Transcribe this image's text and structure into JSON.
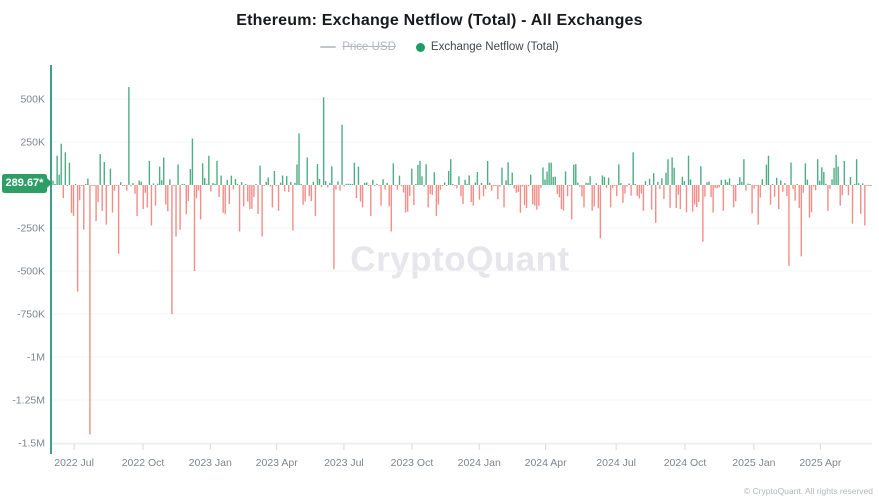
{
  "page": {
    "watermark": "CryptoQuant",
    "copyright": "© CryptoQuant. All rights reserved"
  },
  "chart_data": {
    "type": "bar",
    "title": "Ethereum: Exchange Netflow (Total) - All Exchanges",
    "legend": [
      {
        "label": "Price USD",
        "state": "disabled",
        "marker": "line",
        "color": "#c3c8cd"
      },
      {
        "label": "Exchange Netflow (Total)",
        "state": "active",
        "marker": "dot",
        "color": "#1d9e68"
      }
    ],
    "zero_value_badge": "289.67*",
    "unit": "values in thousands (K) of ETH",
    "ylim_k": [
      -1600,
      660
    ],
    "grid": "horizontal-faint",
    "y_ticks": [
      {
        "label": "500K",
        "value_k": 500
      },
      {
        "label": "250K",
        "value_k": 250
      },
      {
        "label": "-250K",
        "value_k": -250
      },
      {
        "label": "-500K",
        "value_k": -500
      },
      {
        "label": "-750K",
        "value_k": -750
      },
      {
        "label": "-1M",
        "value_k": -1000
      },
      {
        "label": "-1.25M",
        "value_k": -1250
      },
      {
        "label": "-1.5M",
        "value_k": -1500
      }
    ],
    "x_ticks": [
      {
        "label": "2022 Jul",
        "t": 0.027
      },
      {
        "label": "2022 Oct",
        "t": 0.111
      },
      {
        "label": "2023 Jan",
        "t": 0.193
      },
      {
        "label": "2023 Apr",
        "t": 0.274
      },
      {
        "label": "2023 Jul",
        "t": 0.356
      },
      {
        "label": "2023 Oct",
        "t": 0.439
      },
      {
        "label": "2024 Jan",
        "t": 0.521
      },
      {
        "label": "2024 Apr",
        "t": 0.602
      },
      {
        "label": "2024 Jul",
        "t": 0.688
      },
      {
        "label": "2024 Oct",
        "t": 0.772
      },
      {
        "label": "2025 Jan",
        "t": 0.856
      },
      {
        "label": "2025 Apr",
        "t": 0.937
      }
    ],
    "series_name": "Exchange Netflow (Total)",
    "colors": {
      "positive": "#3aa578",
      "negative": "#f0827a",
      "axis": "#3f9e8d",
      "badge": "#2e9e66"
    },
    "bars": {
      "count": 400,
      "spikes_k": [
        [
          2,
          170
        ],
        [
          4,
          240
        ],
        [
          6,
          190
        ],
        [
          8,
          130
        ],
        [
          10,
          -180
        ],
        [
          12,
          -620
        ],
        [
          15,
          -260
        ],
        [
          18,
          -1450
        ],
        [
          21,
          -210
        ],
        [
          23,
          180
        ],
        [
          26,
          -230
        ],
        [
          29,
          -160
        ],
        [
          32,
          -400
        ],
        [
          37,
          570
        ],
        [
          41,
          -180
        ],
        [
          44,
          -140
        ],
        [
          47,
          140
        ],
        [
          50,
          -120
        ],
        [
          54,
          160
        ],
        [
          58,
          -750
        ],
        [
          60,
          -300
        ],
        [
          62,
          -260
        ],
        [
          65,
          -170
        ],
        [
          68,
          270
        ],
        [
          69,
          -500
        ],
        [
          72,
          -200
        ],
        [
          76,
          170
        ],
        [
          80,
          140
        ],
        [
          84,
          -170
        ],
        [
          91,
          -270
        ],
        [
          96,
          -140
        ],
        [
          102,
          -300
        ],
        [
          107,
          -130
        ],
        [
          110,
          -150
        ],
        [
          117,
          -265
        ],
        [
          120,
          300
        ],
        [
          124,
          160
        ],
        [
          128,
          -180
        ],
        [
          132,
          510
        ],
        [
          137,
          -490
        ],
        [
          141,
          350
        ],
        [
          147,
          130
        ],
        [
          151,
          -130
        ],
        [
          155,
          -180
        ],
        [
          160,
          -120
        ],
        [
          165,
          -270
        ],
        [
          172,
          -160
        ],
        [
          179,
          140
        ],
        [
          183,
          -130
        ],
        [
          187,
          -180
        ],
        [
          194,
          150
        ],
        [
          200,
          -110
        ],
        [
          205,
          -120
        ],
        [
          212,
          140
        ],
        [
          220,
          -130
        ],
        [
          228,
          -160
        ],
        [
          235,
          -120
        ],
        [
          243,
          130
        ],
        [
          248,
          -140
        ],
        [
          253,
          -200
        ],
        [
          259,
          -130
        ],
        [
          263,
          -150
        ],
        [
          267,
          -310
        ],
        [
          272,
          -130
        ],
        [
          276,
          120
        ],
        [
          283,
          190
        ],
        [
          288,
          -150
        ],
        [
          294,
          -220
        ],
        [
          300,
          150
        ],
        [
          302,
          160
        ],
        [
          306,
          -140
        ],
        [
          310,
          170
        ],
        [
          317,
          -330
        ],
        [
          322,
          -160
        ],
        [
          327,
          -150
        ],
        [
          332,
          -130
        ],
        [
          337,
          150
        ],
        [
          344,
          -230
        ],
        [
          349,
          170
        ],
        [
          354,
          -140
        ],
        [
          359,
          -470
        ],
        [
          365,
          -415
        ],
        [
          369,
          -190
        ],
        [
          373,
          150
        ],
        [
          378,
          -150
        ],
        [
          382,
          175
        ],
        [
          386,
          140
        ],
        [
          390,
          -225
        ],
        [
          392,
          150
        ],
        [
          396,
          -235
        ]
      ],
      "noise": {
        "seed": 13,
        "pos_prob": 0.46,
        "min_k": 4,
        "shape": 2.3,
        "pos_amp_k": 130,
        "neg_amp_k": 165,
        "burst_prob": 0.93,
        "burst_mult": 1.5
      }
    }
  }
}
